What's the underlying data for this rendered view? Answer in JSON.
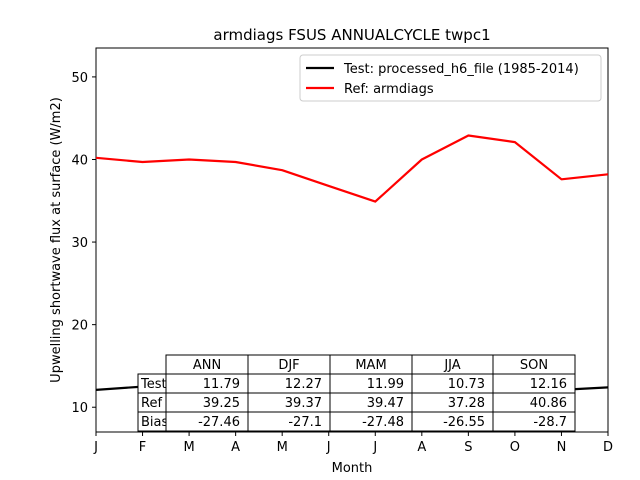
{
  "chart_data": {
    "type": "line",
    "title": "armdiags FSUS ANNUALCYCLE twpc1",
    "xlabel": "Month",
    "ylabel": "Upwelling shortwave flux at surface (W/m2)",
    "categories": [
      "J",
      "F",
      "M",
      "A",
      "M",
      "J",
      "J",
      "A",
      "S",
      "O",
      "N",
      "D"
    ],
    "ylim": [
      7,
      53.5
    ],
    "yticks": [
      10,
      20,
      30,
      40,
      50
    ],
    "grid": false,
    "legend_position": "top-right",
    "series": [
      {
        "name": "Test: processed_h6_file (1985-2014)",
        "color": "#000000",
        "values": [
          12.1,
          12.5,
          12.4,
          12.3,
          11.2,
          10.4,
          10.6,
          11.4,
          12.3,
          12.1,
          12.1,
          12.4
        ]
      },
      {
        "name": "Ref: armdiags",
        "color": "#ff0000",
        "values": [
          40.2,
          39.7,
          40.0,
          39.7,
          38.7,
          36.8,
          34.9,
          40.0,
          42.9,
          42.1,
          37.6,
          38.2
        ]
      }
    ],
    "table": {
      "columns": [
        "ANN",
        "DJF",
        "MAM",
        "JJA",
        "SON"
      ],
      "rows": [
        {
          "label": "Test",
          "values": [
            "11.79",
            "12.27",
            "11.99",
            "10.73",
            "12.16"
          ]
        },
        {
          "label": "Ref",
          "values": [
            "39.25",
            "39.37",
            "39.47",
            "37.28",
            "40.86"
          ]
        },
        {
          "label": "Bias",
          "values": [
            "-27.46",
            "-27.1",
            "-27.48",
            "-26.55",
            "-28.7"
          ]
        }
      ]
    }
  }
}
